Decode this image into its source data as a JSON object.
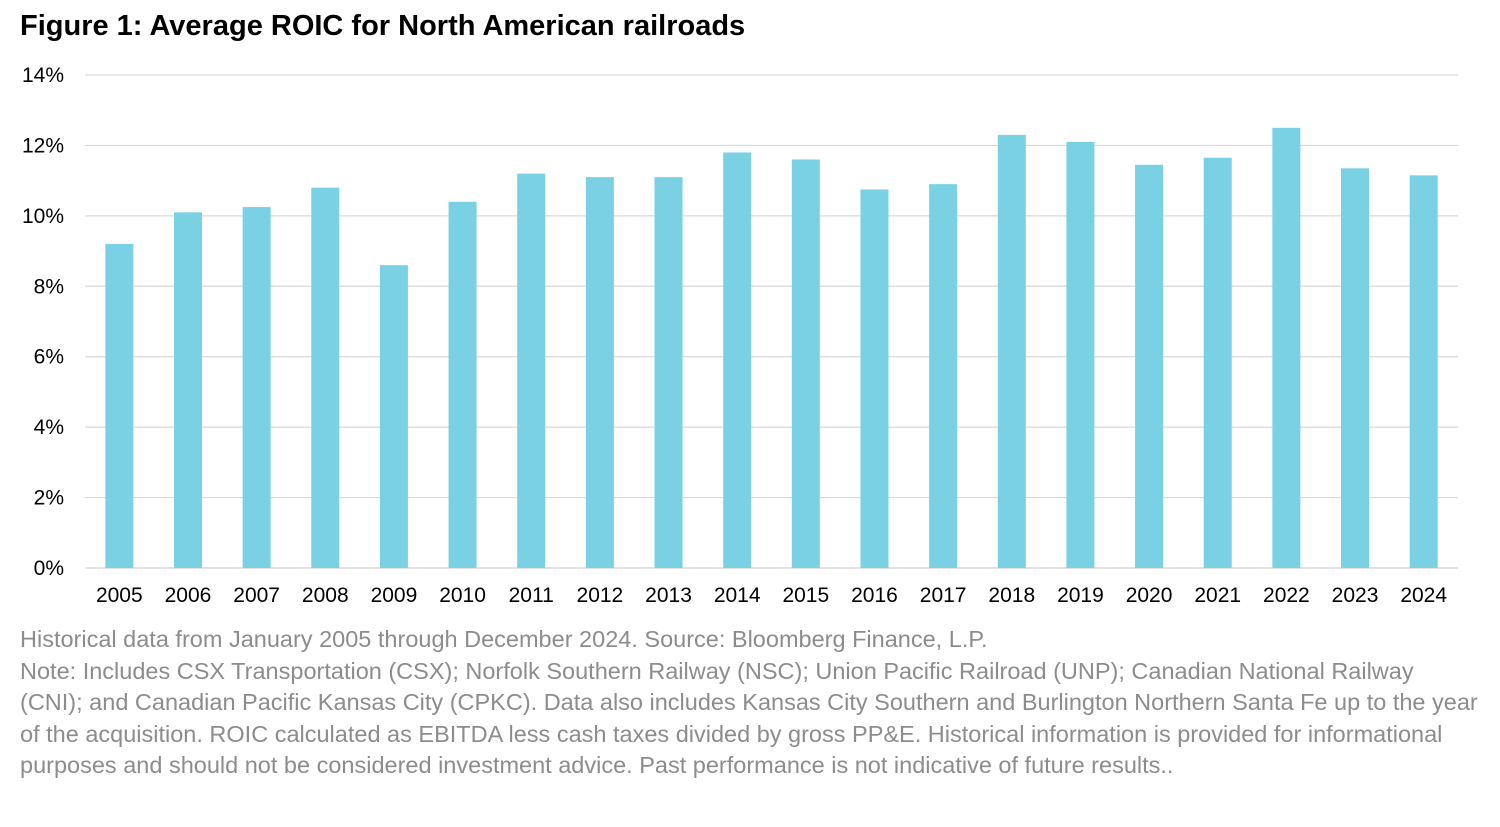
{
  "figure": {
    "title": "Figure 1: Average ROIC for North American railroads"
  },
  "footnotes": {
    "source": "Historical data from January 2005 through December 2024. Source: Bloomberg Finance, L.P.",
    "note": "Note: Includes CSX Transportation (CSX); Norfolk Southern Railway (NSC); Union Pacific Railroad (UNP); Canadian National Railway (CNI); and Canadian Pacific Kansas City (CPKC). Data also includes Kansas City Southern and Burlington Northern Santa Fe up to the year of the acquisition. ROIC calculated as EBITDA less cash taxes divided by gross PP&E. Historical information is provided for informational purposes and should not be considered investment advice. Past performance is not indicative of future results.."
  },
  "chart_data": {
    "type": "bar",
    "title": "Figure 1: Average ROIC for North American railroads",
    "xlabel": "",
    "ylabel": "",
    "categories": [
      "2005",
      "2006",
      "2007",
      "2008",
      "2009",
      "2010",
      "2011",
      "2012",
      "2013",
      "2014",
      "2015",
      "2016",
      "2017",
      "2018",
      "2019",
      "2020",
      "2021",
      "2022",
      "2023",
      "2024"
    ],
    "values": [
      9.2,
      10.1,
      10.25,
      10.8,
      8.6,
      10.4,
      11.2,
      11.1,
      11.1,
      11.8,
      11.6,
      10.75,
      10.9,
      12.3,
      12.1,
      11.45,
      11.65,
      12.5,
      11.35,
      11.15
    ],
    "unit": "%",
    "ylim": [
      0,
      14
    ],
    "yticks": [
      0,
      2,
      4,
      6,
      8,
      10,
      12,
      14
    ],
    "ytick_labels": [
      "0%",
      "2%",
      "4%",
      "6%",
      "8%",
      "10%",
      "12%",
      "14%"
    ],
    "grid": true,
    "legend": "none",
    "bar_color": "#79d1e3",
    "grid_color": "#d9d9d9"
  }
}
